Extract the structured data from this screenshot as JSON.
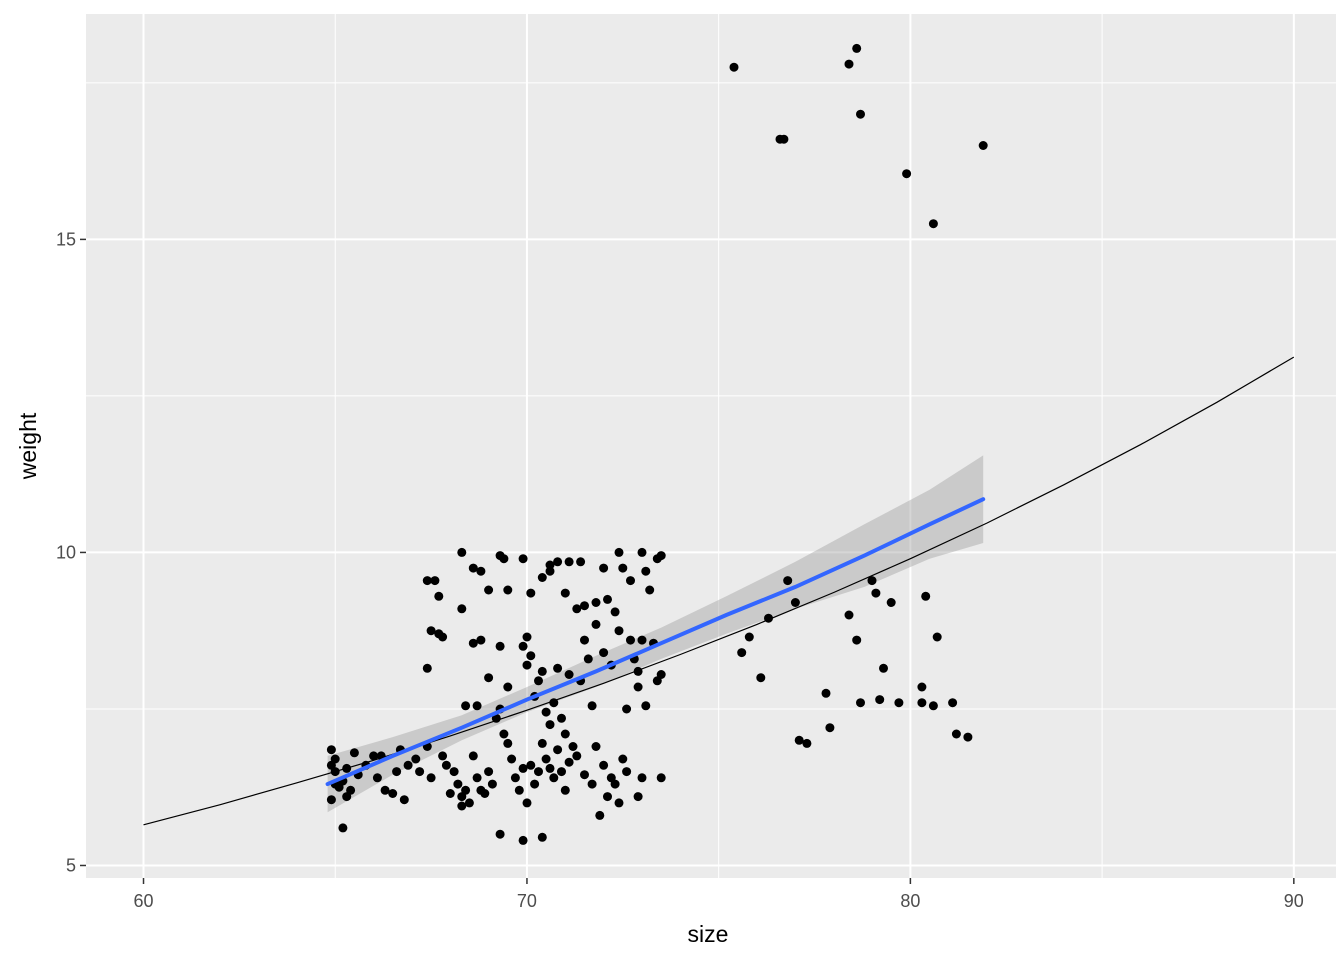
{
  "chart_data": {
    "type": "scatter",
    "xlabel": "size",
    "ylabel": "weight",
    "xlim": [
      58.5,
      91.1
    ],
    "ylim": [
      4.8,
      18.6
    ],
    "x_ticks": [
      60,
      70,
      80,
      90
    ],
    "x_tick_labels": [
      "60",
      "70",
      "80",
      "90"
    ],
    "y_ticks": [
      5,
      10,
      15
    ],
    "y_tick_labels": [
      "5",
      "10",
      "15"
    ],
    "x_minor": [
      65,
      75,
      85
    ],
    "y_minor": [
      7.5,
      12.5,
      17.5
    ],
    "grid": true,
    "legend": "none",
    "colors": {
      "panel": "#ebebeb",
      "grid": "#ffffff",
      "points": "#000000",
      "smooth_line": "#3366ff",
      "ribbon": "#999999",
      "curve": "#000000"
    },
    "points": [
      [
        64.9,
        6.85
      ],
      [
        64.9,
        6.6
      ],
      [
        65.0,
        6.7
      ],
      [
        64.9,
        6.05
      ],
      [
        65.0,
        6.5
      ],
      [
        65.1,
        6.25
      ],
      [
        65.2,
        6.35
      ],
      [
        65.3,
        6.55
      ],
      [
        65.4,
        6.2
      ],
      [
        65.5,
        6.8
      ],
      [
        65.3,
        6.1
      ],
      [
        65.6,
        6.45
      ],
      [
        65.2,
        5.6
      ],
      [
        65.0,
        6.3
      ],
      [
        65.8,
        6.6
      ],
      [
        66.0,
        6.75
      ],
      [
        66.1,
        6.4
      ],
      [
        66.3,
        6.2
      ],
      [
        66.5,
        6.15
      ],
      [
        66.2,
        6.75
      ],
      [
        66.6,
        6.5
      ],
      [
        66.7,
        6.85
      ],
      [
        66.8,
        6.05
      ],
      [
        66.9,
        6.6
      ],
      [
        67.1,
        6.7
      ],
      [
        67.2,
        6.5
      ],
      [
        67.4,
        6.9
      ],
      [
        67.5,
        6.4
      ],
      [
        67.4,
        8.15
      ],
      [
        67.5,
        8.75
      ],
      [
        67.7,
        8.7
      ],
      [
        67.8,
        8.65
      ],
      [
        67.4,
        9.55
      ],
      [
        67.6,
        9.55
      ],
      [
        67.7,
        9.3
      ],
      [
        67.8,
        6.75
      ],
      [
        67.9,
        6.6
      ],
      [
        68.0,
        6.15
      ],
      [
        68.1,
        6.5
      ],
      [
        68.2,
        6.3
      ],
      [
        68.3,
        6.1
      ],
      [
        68.3,
        5.95
      ],
      [
        68.4,
        6.2
      ],
      [
        68.5,
        6.0
      ],
      [
        68.6,
        6.75
      ],
      [
        68.7,
        6.4
      ],
      [
        68.8,
        6.2
      ],
      [
        68.9,
        6.15
      ],
      [
        69.0,
        6.5
      ],
      [
        69.1,
        6.3
      ],
      [
        69.2,
        7.35
      ],
      [
        69.3,
        7.5
      ],
      [
        69.4,
        7.1
      ],
      [
        69.5,
        6.95
      ],
      [
        69.6,
        6.7
      ],
      [
        69.7,
        6.4
      ],
      [
        69.8,
        6.2
      ],
      [
        69.9,
        6.55
      ],
      [
        68.4,
        7.55
      ],
      [
        68.6,
        8.55
      ],
      [
        68.8,
        8.6
      ],
      [
        69.0,
        8.0
      ],
      [
        68.7,
        7.55
      ],
      [
        69.3,
        8.5
      ],
      [
        69.5,
        7.85
      ],
      [
        68.3,
        9.1
      ],
      [
        68.6,
        9.75
      ],
      [
        68.8,
        9.7
      ],
      [
        69.0,
        9.4
      ],
      [
        68.3,
        10.0
      ],
      [
        69.3,
        9.95
      ],
      [
        69.5,
        9.4
      ],
      [
        69.4,
        9.9
      ],
      [
        69.9,
        9.9
      ],
      [
        69.3,
        5.5
      ],
      [
        69.9,
        5.4
      ],
      [
        70.4,
        5.45
      ],
      [
        70.0,
        6.0
      ],
      [
        70.1,
        6.6
      ],
      [
        70.2,
        6.3
      ],
      [
        70.3,
        6.5
      ],
      [
        70.4,
        6.95
      ],
      [
        70.5,
        6.7
      ],
      [
        70.6,
        6.55
      ],
      [
        70.7,
        6.4
      ],
      [
        70.8,
        6.85
      ],
      [
        70.9,
        6.5
      ],
      [
        71.0,
        6.2
      ],
      [
        71.1,
        6.65
      ],
      [
        71.2,
        6.9
      ],
      [
        70.0,
        8.2
      ],
      [
        70.1,
        8.35
      ],
      [
        70.2,
        7.7
      ],
      [
        70.3,
        7.95
      ],
      [
        70.4,
        8.1
      ],
      [
        70.5,
        7.45
      ],
      [
        70.6,
        7.25
      ],
      [
        70.7,
        7.6
      ],
      [
        70.8,
        8.15
      ],
      [
        70.9,
        7.35
      ],
      [
        71.0,
        7.1
      ],
      [
        71.1,
        8.05
      ],
      [
        70.1,
        9.35
      ],
      [
        70.4,
        9.6
      ],
      [
        70.6,
        9.7
      ],
      [
        70.8,
        9.85
      ],
      [
        71.0,
        9.35
      ],
      [
        71.1,
        9.85
      ],
      [
        71.3,
        9.1
      ],
      [
        70.6,
        9.8
      ],
      [
        70.0,
        8.65
      ],
      [
        69.9,
        8.5
      ],
      [
        71.3,
        6.75
      ],
      [
        71.5,
        6.45
      ],
      [
        71.7,
        6.3
      ],
      [
        71.8,
        6.9
      ],
      [
        71.9,
        5.8
      ],
      [
        72.0,
        6.6
      ],
      [
        72.1,
        6.1
      ],
      [
        72.2,
        6.4
      ],
      [
        72.3,
        6.3
      ],
      [
        72.4,
        6.0
      ],
      [
        72.5,
        6.7
      ],
      [
        72.6,
        6.5
      ],
      [
        71.4,
        7.95
      ],
      [
        71.5,
        8.6
      ],
      [
        71.6,
        8.3
      ],
      [
        71.8,
        8.85
      ],
      [
        72.0,
        8.4
      ],
      [
        72.2,
        8.2
      ],
      [
        72.4,
        8.75
      ],
      [
        72.6,
        7.5
      ],
      [
        72.7,
        8.6
      ],
      [
        72.9,
        8.1
      ],
      [
        71.7,
        7.55
      ],
      [
        71.5,
        9.15
      ],
      [
        71.8,
        9.2
      ],
      [
        72.0,
        9.75
      ],
      [
        72.3,
        9.05
      ],
      [
        72.5,
        9.75
      ],
      [
        72.7,
        9.55
      ],
      [
        71.4,
        9.85
      ],
      [
        72.1,
        9.25
      ],
      [
        72.4,
        10.0
      ],
      [
        73.0,
        10.0
      ],
      [
        73.2,
        9.4
      ],
      [
        73.4,
        9.9
      ],
      [
        73.5,
        9.95
      ],
      [
        73.1,
        9.7
      ],
      [
        72.8,
        8.3
      ],
      [
        73.0,
        8.6
      ],
      [
        73.3,
        8.55
      ],
      [
        73.4,
        7.95
      ],
      [
        73.5,
        8.05
      ],
      [
        72.9,
        7.85
      ],
      [
        73.1,
        7.55
      ],
      [
        72.9,
        6.1
      ],
      [
        73.0,
        6.4
      ],
      [
        73.5,
        6.4
      ],
      [
        75.6,
        8.4
      ],
      [
        75.8,
        8.65
      ],
      [
        76.1,
        8.0
      ],
      [
        76.3,
        8.95
      ],
      [
        77.0,
        9.2
      ],
      [
        76.8,
        9.55
      ],
      [
        77.1,
        7.0
      ],
      [
        77.3,
        6.95
      ],
      [
        77.8,
        7.75
      ],
      [
        77.9,
        7.2
      ],
      [
        78.4,
        9.0
      ],
      [
        78.6,
        8.6
      ],
      [
        78.7,
        7.6
      ],
      [
        79.0,
        9.55
      ],
      [
        79.1,
        9.35
      ],
      [
        79.2,
        7.65
      ],
      [
        79.3,
        8.15
      ],
      [
        79.5,
        9.2
      ],
      [
        79.7,
        7.6
      ],
      [
        80.3,
        7.85
      ],
      [
        80.4,
        9.3
      ],
      [
        80.3,
        7.6
      ],
      [
        80.7,
        8.65
      ],
      [
        80.6,
        7.55
      ],
      [
        81.1,
        7.6
      ],
      [
        81.2,
        7.1
      ],
      [
        81.5,
        7.05
      ],
      [
        75.4,
        17.75
      ],
      [
        76.6,
        16.6
      ],
      [
        76.7,
        16.6
      ],
      [
        78.4,
        17.8
      ],
      [
        78.6,
        18.05
      ],
      [
        78.7,
        17.0
      ],
      [
        79.9,
        16.05
      ],
      [
        80.6,
        15.25
      ],
      [
        81.9,
        16.5
      ]
    ],
    "smooth": {
      "x": [
        64.8,
        66.5,
        68.3,
        70.0,
        71.8,
        73.5,
        75.2,
        77.0,
        78.8,
        80.5,
        81.9
      ],
      "y": [
        6.3,
        6.75,
        7.2,
        7.65,
        8.1,
        8.55,
        9.0,
        9.45,
        9.95,
        10.45,
        10.85
      ],
      "lower": [
        5.85,
        6.45,
        7.0,
        7.45,
        7.85,
        8.3,
        8.7,
        9.1,
        9.45,
        9.9,
        10.15
      ],
      "upper": [
        6.75,
        7.05,
        7.4,
        7.85,
        8.35,
        8.8,
        9.3,
        9.85,
        10.45,
        11.0,
        11.55
      ]
    },
    "curve": {
      "x": [
        60,
        62,
        64,
        66,
        68,
        70,
        72,
        74,
        76,
        78,
        80,
        82,
        84,
        86,
        88,
        90
      ],
      "y": [
        5.65,
        5.97,
        6.32,
        6.68,
        7.07,
        7.48,
        7.91,
        8.37,
        8.85,
        9.36,
        9.9,
        10.47,
        11.08,
        11.72,
        12.4,
        13.12
      ]
    }
  }
}
